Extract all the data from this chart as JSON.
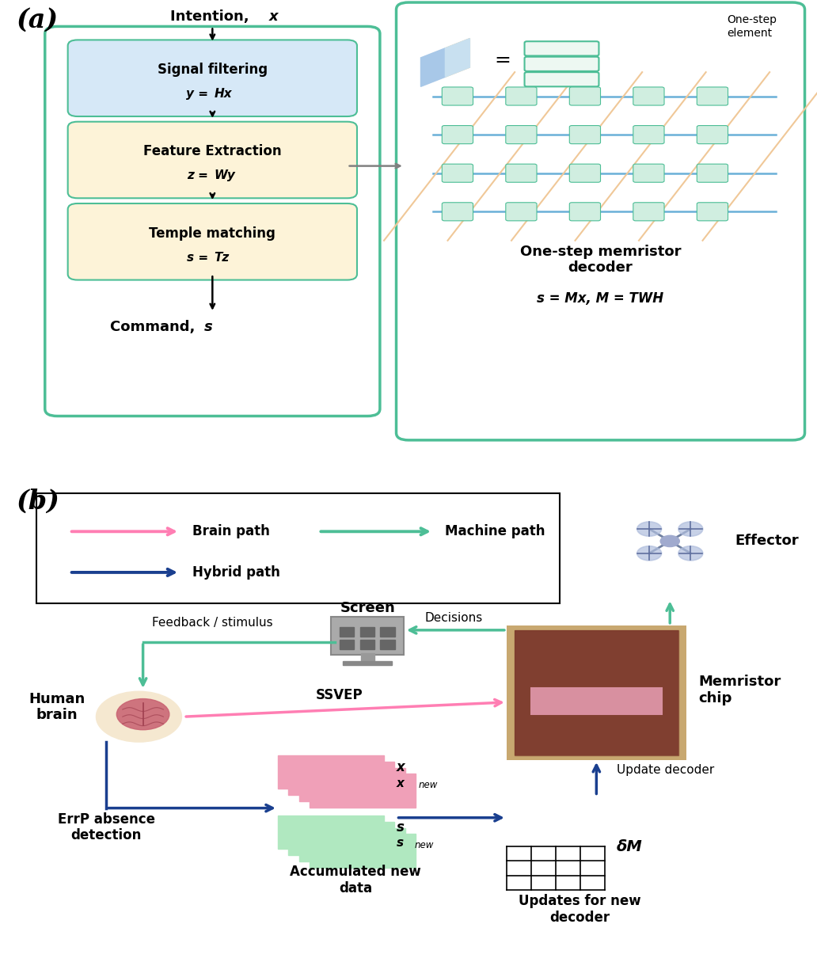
{
  "fig_width": 10.32,
  "fig_height": 12.15,
  "bg_color": "#ffffff",
  "panel_a_label": "(a)",
  "panel_b_label": "(b)",
  "box1_text": "Signal filtering",
  "box2_text": "Feature Extraction",
  "box3_text": "Temple matching",
  "box1_color": "#d6e8f7",
  "box2_color": "#fdf3d8",
  "box3_color": "#fdf3d8",
  "outer_box_color": "#4dbe96",
  "right_box_color": "#4dbe96",
  "decoder_title": "One-step memristor\ndecoder",
  "decoder_formula": "s = Mx, M = TWH",
  "one_step_label": "One-step\nelement",
  "legend_brain": "Brain path",
  "legend_machine": "Machine path",
  "legend_hybrid": "Hybrid path",
  "brain_color": "#ff7eb3",
  "machine_color": "#4dbe96",
  "hybrid_color": "#1a3f8f",
  "effector_label": "Effector",
  "screen_label": "Screen",
  "feedback_label": "Feedback / stimulus",
  "decisions_label": "Decisions",
  "human_brain_label": "Human\nbrain",
  "ssvep_label": "SSVEP",
  "memristor_label": "Memristor\nchip",
  "update_decoder_label": "Update decoder",
  "delta_m_label": "δM",
  "accumulated_label": "Accumulated new\ndata",
  "updates_label": "Updates for new\ndecoder",
  "errp_label": "ErrP absence\ndetection"
}
